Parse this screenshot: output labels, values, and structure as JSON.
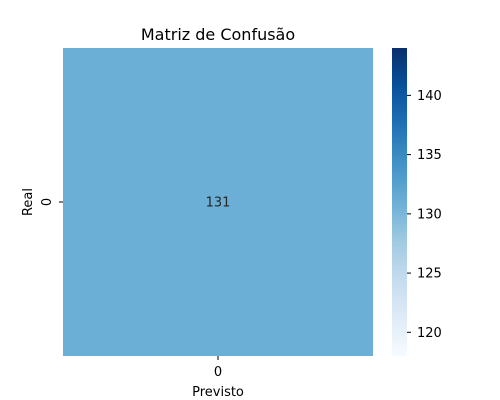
{
  "chart_data": {
    "type": "heatmap",
    "title": "Matriz de Confusão",
    "xlabel": "Previsto",
    "ylabel": "Real",
    "x_categories": [
      "0"
    ],
    "y_categories": [
      "0"
    ],
    "values": [
      [
        131
      ]
    ],
    "cell_labels": [
      [
        "131"
      ]
    ],
    "colorbar": {
      "range": [
        118,
        144
      ],
      "ticks": [
        120,
        125,
        130,
        135,
        140
      ],
      "tick_labels": [
        "120",
        "125",
        "130",
        "135",
        "140"
      ],
      "colormap": "Blues",
      "color_low": "#f7fbff",
      "color_high": "#08306b"
    },
    "grid": false,
    "legend": "colorbar-right"
  }
}
